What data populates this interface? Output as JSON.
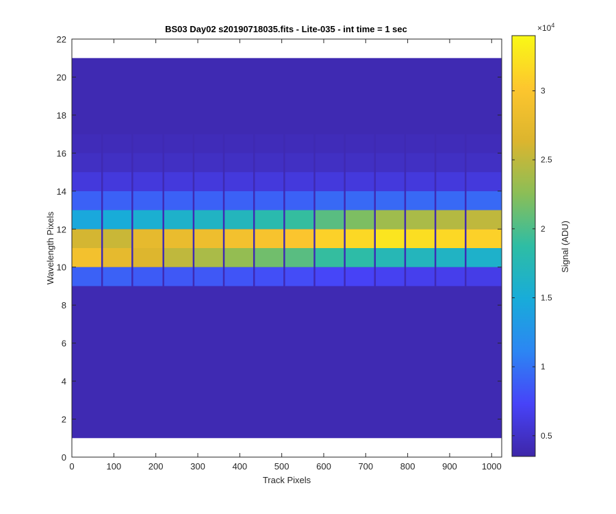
{
  "chart_data": {
    "type": "heatmap",
    "title": "BS03 Day02  s20190718035.fits - Lite-035 - int time = 1 sec",
    "xlabel": "Track Pixels",
    "ylabel": "Wavelength Pixels",
    "xlim": [
      0,
      1024
    ],
    "ylim": [
      0,
      22
    ],
    "x_ticks": [
      "0",
      "100",
      "200",
      "300",
      "400",
      "500",
      "600",
      "700",
      "800",
      "900",
      "1000"
    ],
    "y_ticks": [
      "0",
      "2",
      "4",
      "6",
      "8",
      "10",
      "12",
      "14",
      "16",
      "18",
      "20",
      "22"
    ],
    "colorbar": {
      "label": "Signal (ADU)",
      "exponent": "×10",
      "exponent_power": "4",
      "range": [
        3500,
        34000
      ],
      "ticks": [
        "0.5",
        "1",
        "1.5",
        "2",
        "2.5",
        "3"
      ],
      "colormap": [
        "#3e26a8",
        "#4743f8",
        "#2c86f3",
        "#18acd9",
        "#2ebda4",
        "#8bbe57",
        "#dcb52e",
        "#fdc62e",
        "#f9f915"
      ]
    },
    "image_extent": {
      "x": [
        0,
        1024
      ],
      "y": [
        1,
        21
      ]
    },
    "background_value": 4000,
    "grid": false,
    "segments": [
      {
        "x_start": 0,
        "x_end": 70,
        "rows": {
          "9": 9000,
          "10": 29000,
          "11": 26000,
          "12": 14500,
          "13": 9000,
          "14": 6000,
          "15": 4800,
          "16": 4300
        }
      },
      {
        "x_start": 74,
        "x_end": 142,
        "rows": {
          "9": 9000,
          "10": 27500,
          "11": 25500,
          "12": 15000,
          "13": 9000,
          "14": 6000,
          "15": 4800,
          "16": 4300
        }
      },
      {
        "x_start": 146,
        "x_end": 216,
        "rows": {
          "9": 8700,
          "10": 26500,
          "11": 27500,
          "12": 15500,
          "13": 9000,
          "14": 6000,
          "15": 4800,
          "16": 4300
        }
      },
      {
        "x_start": 220,
        "x_end": 288,
        "rows": {
          "9": 8500,
          "10": 25000,
          "11": 28000,
          "12": 16000,
          "13": 9000,
          "14": 6000,
          "15": 4800,
          "16": 4300
        }
      },
      {
        "x_start": 292,
        "x_end": 360,
        "rows": {
          "9": 8500,
          "10": 24000,
          "11": 28500,
          "12": 16500,
          "13": 9000,
          "14": 6000,
          "15": 4800,
          "16": 4300
        }
      },
      {
        "x_start": 364,
        "x_end": 432,
        "rows": {
          "9": 8300,
          "10": 23000,
          "11": 29000,
          "12": 17000,
          "13": 9000,
          "14": 6000,
          "15": 4800,
          "16": 4300
        }
      },
      {
        "x_start": 436,
        "x_end": 504,
        "rows": {
          "9": 8000,
          "10": 21500,
          "11": 29500,
          "12": 18000,
          "13": 9000,
          "14": 6000,
          "15": 4800,
          "16": 4300
        }
      },
      {
        "x_start": 508,
        "x_end": 576,
        "rows": {
          "9": 7800,
          "10": 20500,
          "11": 30000,
          "12": 19000,
          "13": 9000,
          "14": 6000,
          "15": 4800,
          "16": 4300
        }
      },
      {
        "x_start": 580,
        "x_end": 648,
        "rows": {
          "9": 7500,
          "10": 19000,
          "11": 31000,
          "12": 20500,
          "13": 9500,
          "14": 6000,
          "15": 4800,
          "16": 4300
        }
      },
      {
        "x_start": 652,
        "x_end": 720,
        "rows": {
          "9": 7200,
          "10": 18500,
          "11": 31500,
          "12": 22000,
          "13": 9500,
          "14": 6000,
          "15": 4800,
          "16": 4300
        }
      },
      {
        "x_start": 724,
        "x_end": 792,
        "rows": {
          "9": 7000,
          "10": 17500,
          "11": 32500,
          "12": 23500,
          "13": 9500,
          "14": 6000,
          "15": 4800,
          "16": 4300
        }
      },
      {
        "x_start": 796,
        "x_end": 864,
        "rows": {
          "9": 6800,
          "10": 17000,
          "11": 32000,
          "12": 24000,
          "13": 9500,
          "14": 6000,
          "15": 4800,
          "16": 4300
        }
      },
      {
        "x_start": 868,
        "x_end": 936,
        "rows": {
          "9": 6700,
          "10": 16500,
          "11": 31500,
          "12": 24500,
          "13": 9500,
          "14": 6000,
          "15": 4800,
          "16": 4300
        }
      },
      {
        "x_start": 940,
        "x_end": 1024,
        "rows": {
          "9": 6500,
          "10": 16000,
          "11": 31000,
          "12": 25000,
          "13": 9500,
          "14": 6000,
          "15": 4800,
          "16": 4300
        }
      }
    ]
  }
}
